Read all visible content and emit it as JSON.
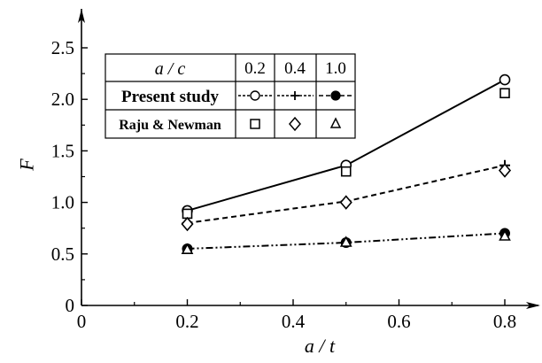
{
  "chart_data": {
    "type": "line",
    "title": "",
    "xlabel": "a / t",
    "ylabel": "F",
    "xlim": [
      0,
      0.8
    ],
    "ylim": [
      0,
      2.5
    ],
    "x_ticks": [
      "0",
      "0.2",
      "0.4",
      "0.6",
      "0.8"
    ],
    "y_ticks": [
      "0",
      "0.5",
      "1.0",
      "1.5",
      "2.0",
      "2.5"
    ],
    "grid": false,
    "legend_placement": "top-left",
    "series": [
      {
        "name": "Present study a/c = 0.2",
        "line_style": "solid",
        "marker": "open-circle",
        "x": [
          0.2,
          0.5,
          0.8
        ],
        "y": [
          0.92,
          1.36,
          2.19
        ]
      },
      {
        "name": "Present study a/c = 0.4",
        "line_style": "dashed",
        "marker": "plus",
        "x": [
          0.2,
          0.5,
          0.8
        ],
        "y": [
          0.8,
          1.01,
          1.36
        ]
      },
      {
        "name": "Present study a/c = 1.0",
        "line_style": "dash-dot-dot",
        "marker": "filled-circle",
        "x": [
          0.2,
          0.5,
          0.8
        ],
        "y": [
          0.55,
          0.61,
          0.7
        ]
      },
      {
        "name": "Raju & Newman a/c = 0.2",
        "line_style": "none",
        "marker": "open-square",
        "x": [
          0.2,
          0.5,
          0.8
        ],
        "y": [
          0.89,
          1.3,
          2.06
        ]
      },
      {
        "name": "Raju & Newman a/c = 0.4",
        "line_style": "none",
        "marker": "open-diamond",
        "x": [
          0.2,
          0.5,
          0.8
        ],
        "y": [
          0.79,
          1.0,
          1.31
        ]
      },
      {
        "name": "Raju & Newman a/c = 1.0",
        "line_style": "none",
        "marker": "open-triangle",
        "x": [
          0.2,
          0.5,
          0.8
        ],
        "y": [
          0.54,
          0.61,
          0.67
        ]
      }
    ],
    "legend_table": {
      "header": "a / c",
      "columns": [
        "0.2",
        "0.4",
        "1.0"
      ],
      "rows": [
        "Present study",
        "Raju & Newman"
      ]
    }
  }
}
